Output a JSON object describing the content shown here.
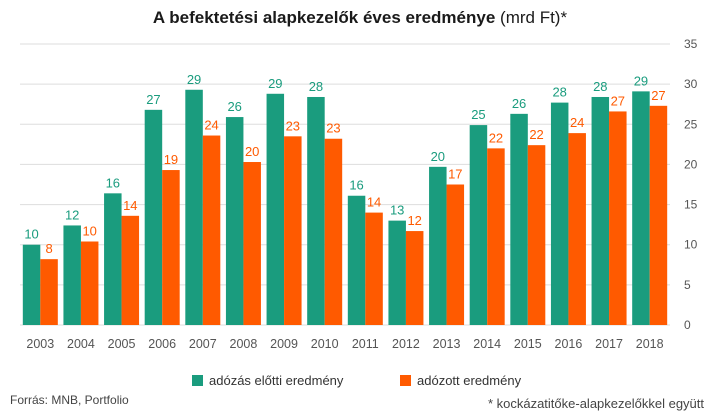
{
  "title_main": "A befektetési alapkezelők éves eredménye",
  "title_unit": "(mrd Ft)*",
  "source": "Forrás: MNB, Portfolio",
  "footnote": "* kockázatitőke-alapkezelőkkel együtt",
  "colors": {
    "pre_tax": "#1a9c7e",
    "after_tax": "#ff5a00",
    "grid": "#dddddd",
    "axis_text": "#555555"
  },
  "chart_data": {
    "type": "bar",
    "title": "A befektetési alapkezelők éves eredménye (mrd Ft)*",
    "categories": [
      "2003",
      "2004",
      "2005",
      "2006",
      "2007",
      "2008",
      "2009",
      "2010",
      "2011",
      "2012",
      "2013",
      "2014",
      "2015",
      "2016",
      "2017",
      "2018"
    ],
    "series": [
      {
        "name": "adózás előtti eredmény",
        "values": [
          10,
          12,
          16,
          27,
          29,
          26,
          29,
          28,
          16,
          13,
          20,
          25,
          26,
          28,
          28,
          29
        ],
        "exact": [
          10.0,
          12.4,
          16.4,
          26.8,
          29.3,
          25.9,
          28.8,
          28.4,
          16.1,
          13.0,
          19.7,
          24.9,
          26.3,
          27.7,
          28.4,
          29.1
        ]
      },
      {
        "name": "adózott eredmény",
        "values": [
          8,
          10,
          14,
          19,
          24,
          20,
          23,
          23,
          14,
          12,
          17,
          22,
          22,
          24,
          27,
          27
        ],
        "exact": [
          8.2,
          10.4,
          13.6,
          19.3,
          23.6,
          20.3,
          23.5,
          23.2,
          14.0,
          11.7,
          17.5,
          22.0,
          22.4,
          23.9,
          26.6,
          27.3
        ]
      }
    ],
    "yticks": [
      0,
      5,
      10,
      15,
      20,
      25,
      30,
      35
    ],
    "ylim": [
      0,
      35
    ],
    "y_axis_side": "right",
    "grid": true,
    "legend": "bottom"
  }
}
